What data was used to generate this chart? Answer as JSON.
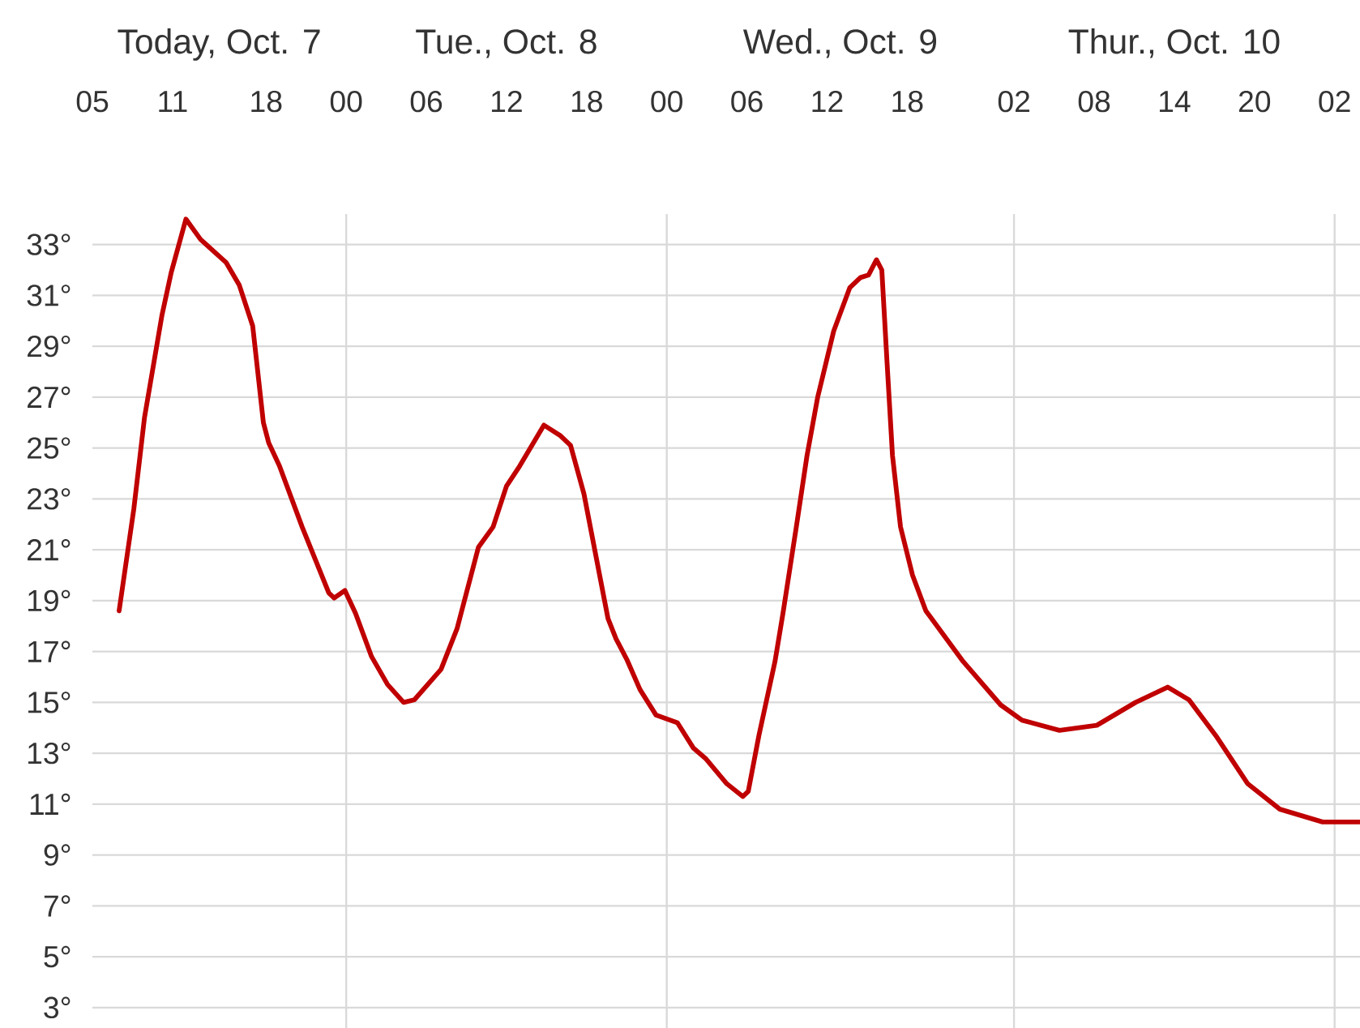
{
  "chart_data": {
    "type": "line",
    "x": [
      7.0,
      8.1,
      8.9,
      10.2,
      10.9,
      12.0,
      13.1,
      15.0,
      16.0,
      17.0,
      17.8,
      18.2,
      19.0,
      20.7,
      22.7,
      23.1,
      23.9,
      24.7,
      25.9,
      27.1,
      28.3,
      29.1,
      31.1,
      32.3,
      33.9,
      35.0,
      36.0,
      37.0,
      38.8,
      40.0,
      40.8,
      41.8,
      43.6,
      44.2,
      45.0,
      46.0,
      47.2,
      48.8,
      50.0,
      50.9,
      52.5,
      53.7,
      54.1,
      54.9,
      56.1,
      56.7,
      57.7,
      58.5,
      59.3,
      60.5,
      61.7,
      62.5,
      63.1,
      63.7,
      64.1,
      64.5,
      64.9,
      65.5,
      66.4,
      67.4,
      70.2,
      73.0,
      74.6,
      77.4,
      80.2,
      83.1,
      85.5,
      87.1,
      89.1,
      91.5,
      93.9,
      97.1,
      99.9
    ],
    "values": [
      18.6,
      22.6,
      26.2,
      30.2,
      31.9,
      34.0,
      33.2,
      32.3,
      31.4,
      29.8,
      26.0,
      25.2,
      24.3,
      21.9,
      19.3,
      19.1,
      19.4,
      18.5,
      16.8,
      15.7,
      15.0,
      15.1,
      16.3,
      17.9,
      21.1,
      21.9,
      23.5,
      24.3,
      25.9,
      25.5,
      25.1,
      23.2,
      18.3,
      17.5,
      16.7,
      15.5,
      14.5,
      14.2,
      13.2,
      12.8,
      11.8,
      11.3,
      11.5,
      13.7,
      16.6,
      18.5,
      21.9,
      24.7,
      27.0,
      29.6,
      31.3,
      31.7,
      31.8,
      32.4,
      32.0,
      28.3,
      24.7,
      21.9,
      20.0,
      18.6,
      16.6,
      14.9,
      14.3,
      13.9,
      14.1,
      15.0,
      15.6,
      15.1,
      13.7,
      11.8,
      10.8,
      10.3,
      10.3
    ],
    "color": "#c00000",
    "xlim": [
      5,
      99.9
    ],
    "xticks": [
      {
        "value": 5,
        "label": "05"
      },
      {
        "value": 11,
        "label": "11"
      },
      {
        "value": 18,
        "label": "18"
      },
      {
        "value": 24,
        "label": "00"
      },
      {
        "value": 30,
        "label": "06"
      },
      {
        "value": 36,
        "label": "12"
      },
      {
        "value": 42,
        "label": "18"
      },
      {
        "value": 48,
        "label": "00"
      },
      {
        "value": 54,
        "label": "06"
      },
      {
        "value": 60,
        "label": "12"
      },
      {
        "value": 66,
        "label": "18"
      },
      {
        "value": 74,
        "label": "02"
      },
      {
        "value": 80,
        "label": "08"
      },
      {
        "value": 86,
        "label": "14"
      },
      {
        "value": 92,
        "label": "20"
      },
      {
        "value": 98,
        "label": "02"
      }
    ],
    "ylim": [
      2.2,
      34.2
    ],
    "yticks": [
      {
        "value": 3,
        "label": "3°"
      },
      {
        "value": 5,
        "label": "5°"
      },
      {
        "value": 7,
        "label": "7°"
      },
      {
        "value": 9,
        "label": "9°"
      },
      {
        "value": 11,
        "label": "11°"
      },
      {
        "value": 13,
        "label": "13°"
      },
      {
        "value": 15,
        "label": "15°"
      },
      {
        "value": 17,
        "label": "17°"
      },
      {
        "value": 19,
        "label": "19°"
      },
      {
        "value": 21,
        "label": "21°"
      },
      {
        "value": 23,
        "label": "23°"
      },
      {
        "value": 25,
        "label": "25°"
      },
      {
        "value": 27,
        "label": "27°"
      },
      {
        "value": 29,
        "label": "29°"
      },
      {
        "value": 31,
        "label": "31°"
      },
      {
        "value": 33,
        "label": "33°"
      }
    ],
    "grid": "y",
    "ref_lines": [
      {
        "axis": "x",
        "value": 24,
        "color": "#d9d9d9"
      },
      {
        "axis": "x",
        "value": 48,
        "color": "#d9d9d9"
      },
      {
        "axis": "x",
        "value": 74,
        "color": "#d9d9d9"
      },
      {
        "axis": "x",
        "value": 98,
        "color": "#d9d9d9"
      }
    ],
    "annotations": [
      "Today, Oct. 7",
      "Tue., Oct. 8",
      "Wed., Oct. 9",
      "Thur., Oct. 10"
    ]
  }
}
